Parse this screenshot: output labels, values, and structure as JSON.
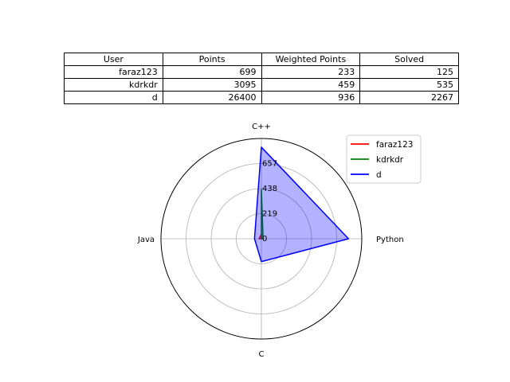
{
  "table": {
    "headers": [
      "User",
      "Points",
      "Weighted Points",
      "Solved"
    ],
    "rows": [
      {
        "user": "faraz123",
        "points": "699",
        "weighted_points": "233",
        "solved": "125"
      },
      {
        "user": "kdrkdr",
        "points": "3095",
        "weighted_points": "459",
        "solved": "535"
      },
      {
        "user": "d",
        "points": "26400",
        "weighted_points": "936",
        "solved": "2267"
      }
    ]
  },
  "chart_data": {
    "type": "radar",
    "axes": [
      "C++",
      "Python",
      "C",
      "Java"
    ],
    "radial_ticks": [
      "0",
      "219",
      "438",
      "657"
    ],
    "radial_tick_values": [
      0,
      219,
      438,
      657
    ],
    "radial_max": 876,
    "grid": true,
    "legend_position": "upper-right",
    "series": [
      {
        "name": "faraz123",
        "color": "#ff0000",
        "fill": false,
        "values": [
          40,
          0,
          0,
          20
        ]
      },
      {
        "name": "kdrkdr",
        "color": "#008000",
        "fill": true,
        "fill_color": "#008000",
        "values": [
          430,
          15,
          0,
          0
        ]
      },
      {
        "name": "d",
        "color": "#0000ff",
        "fill": true,
        "fill_color": "#0000ff",
        "values": [
          800,
          760,
          200,
          60
        ]
      }
    ]
  }
}
